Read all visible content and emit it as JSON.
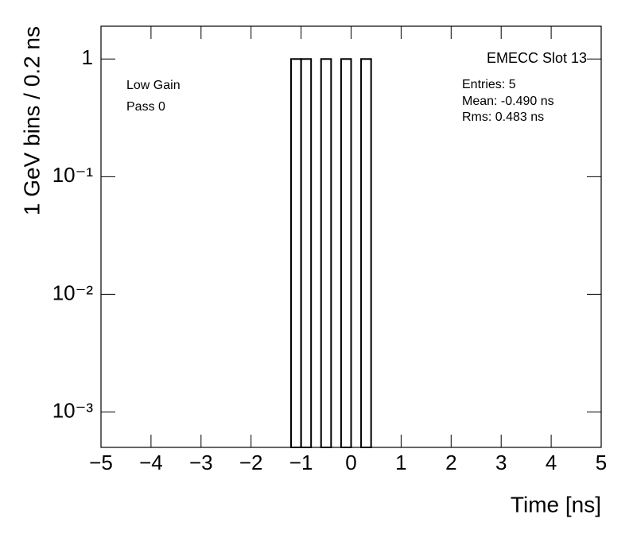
{
  "chart_data": {
    "type": "histogram",
    "title": "EMECC Slot 13",
    "annotations": [
      "Low Gain",
      "Pass 0"
    ],
    "stats": [
      "Entries: 5",
      "Mean: -0.490 ns",
      "Rms: 0.483 ns"
    ],
    "x_label": "Time [ns]",
    "y_label": "1 GeV bins / 0.2 ns",
    "bins": [
      -1.2,
      -1.0,
      -0.8,
      -0.6,
      -0.4,
      -0.2,
      0,
      0.2,
      0.4
    ],
    "values": [
      1,
      1,
      0,
      1,
      0,
      1,
      0,
      1
    ],
    "color": "#000000",
    "xlim": [
      -5,
      5
    ],
    "xticks": [
      {
        "value": -5,
        "label": "−5"
      },
      {
        "value": -4,
        "label": "−4"
      },
      {
        "value": -3,
        "label": "−3"
      },
      {
        "value": -2,
        "label": "−2"
      },
      {
        "value": -1,
        "label": "−1"
      },
      0,
      1,
      2,
      3,
      4,
      5
    ],
    "ylim": [
      0.0005,
      1.9
    ],
    "yticks": [
      {
        "value": 0.001,
        "label": "10⁻³"
      },
      {
        "value": 0.01,
        "label": "10⁻²"
      },
      {
        "value": 0.1,
        "label": "10⁻¹"
      },
      1
    ],
    "log_y": true
  }
}
